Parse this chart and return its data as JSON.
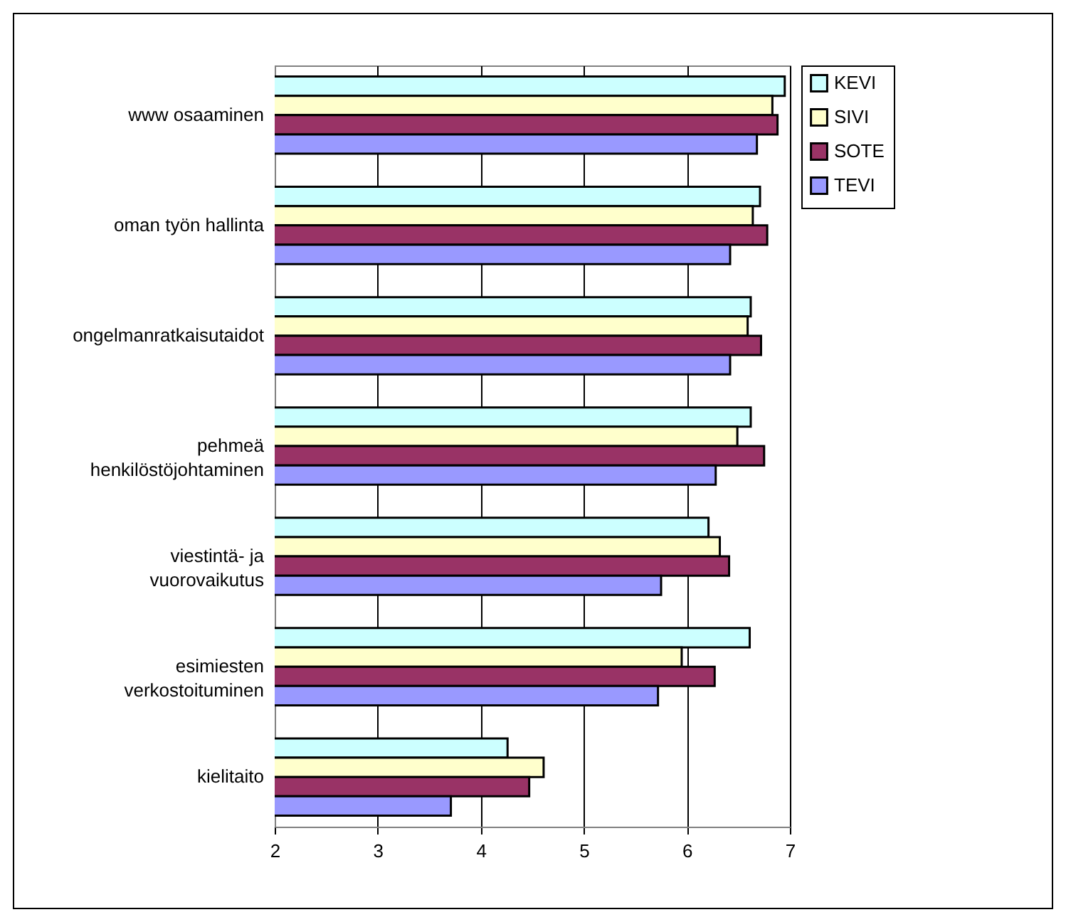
{
  "chart_data": {
    "type": "bar",
    "orientation": "horizontal",
    "categories": [
      "www osaaminen",
      "oman työn hallinta",
      "ongelmanratkaisutaidot",
      "pehmeä\nhenkilöstöjohtaminen",
      "viestintä- ja\nvuorovaikutus",
      "esimiesten\nverkostoituminen",
      "kielitaito"
    ],
    "series": [
      {
        "name": "KEVI",
        "color": "#ccffff",
        "values": [
          6.95,
          6.71,
          6.62,
          6.62,
          6.21,
          6.61,
          4.26
        ]
      },
      {
        "name": "SIVI",
        "color": "#ffffcc",
        "values": [
          6.83,
          6.64,
          6.59,
          6.49,
          6.32,
          5.95,
          4.61
        ]
      },
      {
        "name": "SOTE",
        "color": "#993366",
        "values": [
          6.88,
          6.78,
          6.72,
          6.75,
          6.41,
          6.27,
          4.47
        ]
      },
      {
        "name": "TEVI",
        "color": "#9999ff",
        "values": [
          6.68,
          6.42,
          6.42,
          6.28,
          5.75,
          5.72,
          3.71
        ]
      }
    ],
    "xlim": [
      2,
      7
    ],
    "xticks": [
      2,
      3,
      4,
      5,
      6,
      7
    ],
    "grid": "x",
    "legend": "right"
  }
}
